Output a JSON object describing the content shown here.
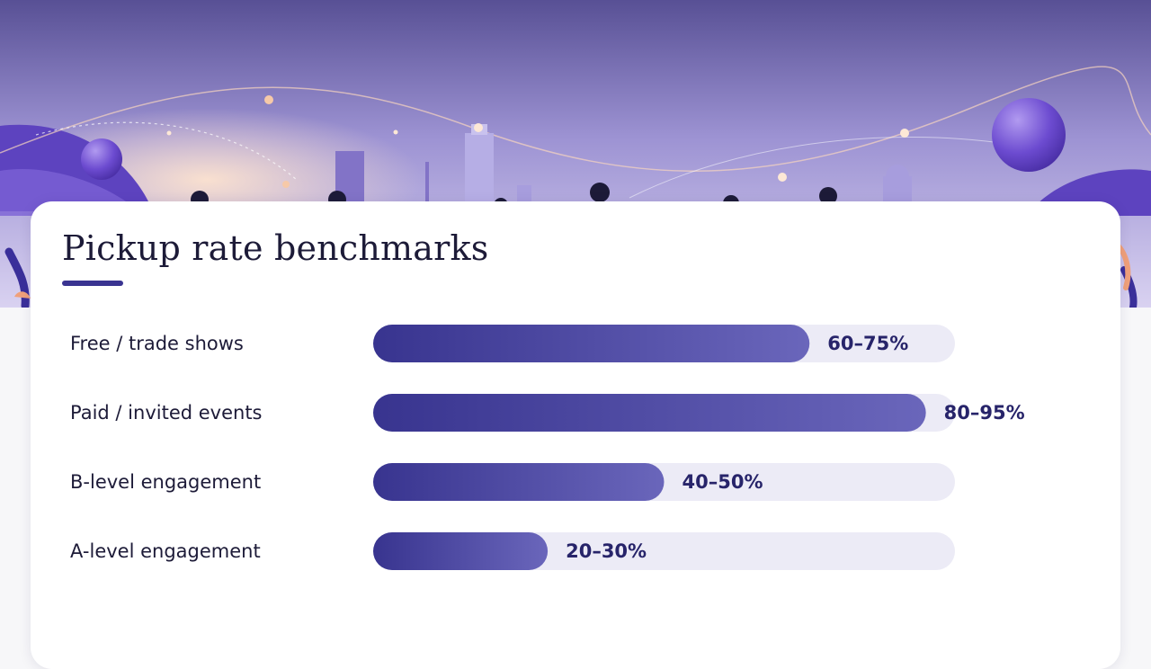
{
  "slide": {
    "title": "Pickup rate benchmarks"
  },
  "colors": {
    "bar_start": "#38348f",
    "bar_end": "#6a66bb",
    "track": "#ecebf6",
    "accent": "#3a3491"
  },
  "chart_data": {
    "type": "bar",
    "orientation": "horizontal",
    "title": "Pickup rate benchmarks",
    "xlim": [
      0,
      100
    ],
    "unit": "%",
    "grid": false,
    "legend": "none",
    "categories": [
      "Free / trade shows",
      "Paid / invited events",
      "B-level engagement",
      "A-level engagement"
    ],
    "ranges": [
      [
        60,
        75
      ],
      [
        80,
        95
      ],
      [
        40,
        50
      ],
      [
        20,
        30
      ]
    ],
    "values": [
      75,
      95,
      50,
      30
    ],
    "value_labels": [
      "60–75%",
      "80–95%",
      "40–50%",
      "20–30%"
    ]
  }
}
